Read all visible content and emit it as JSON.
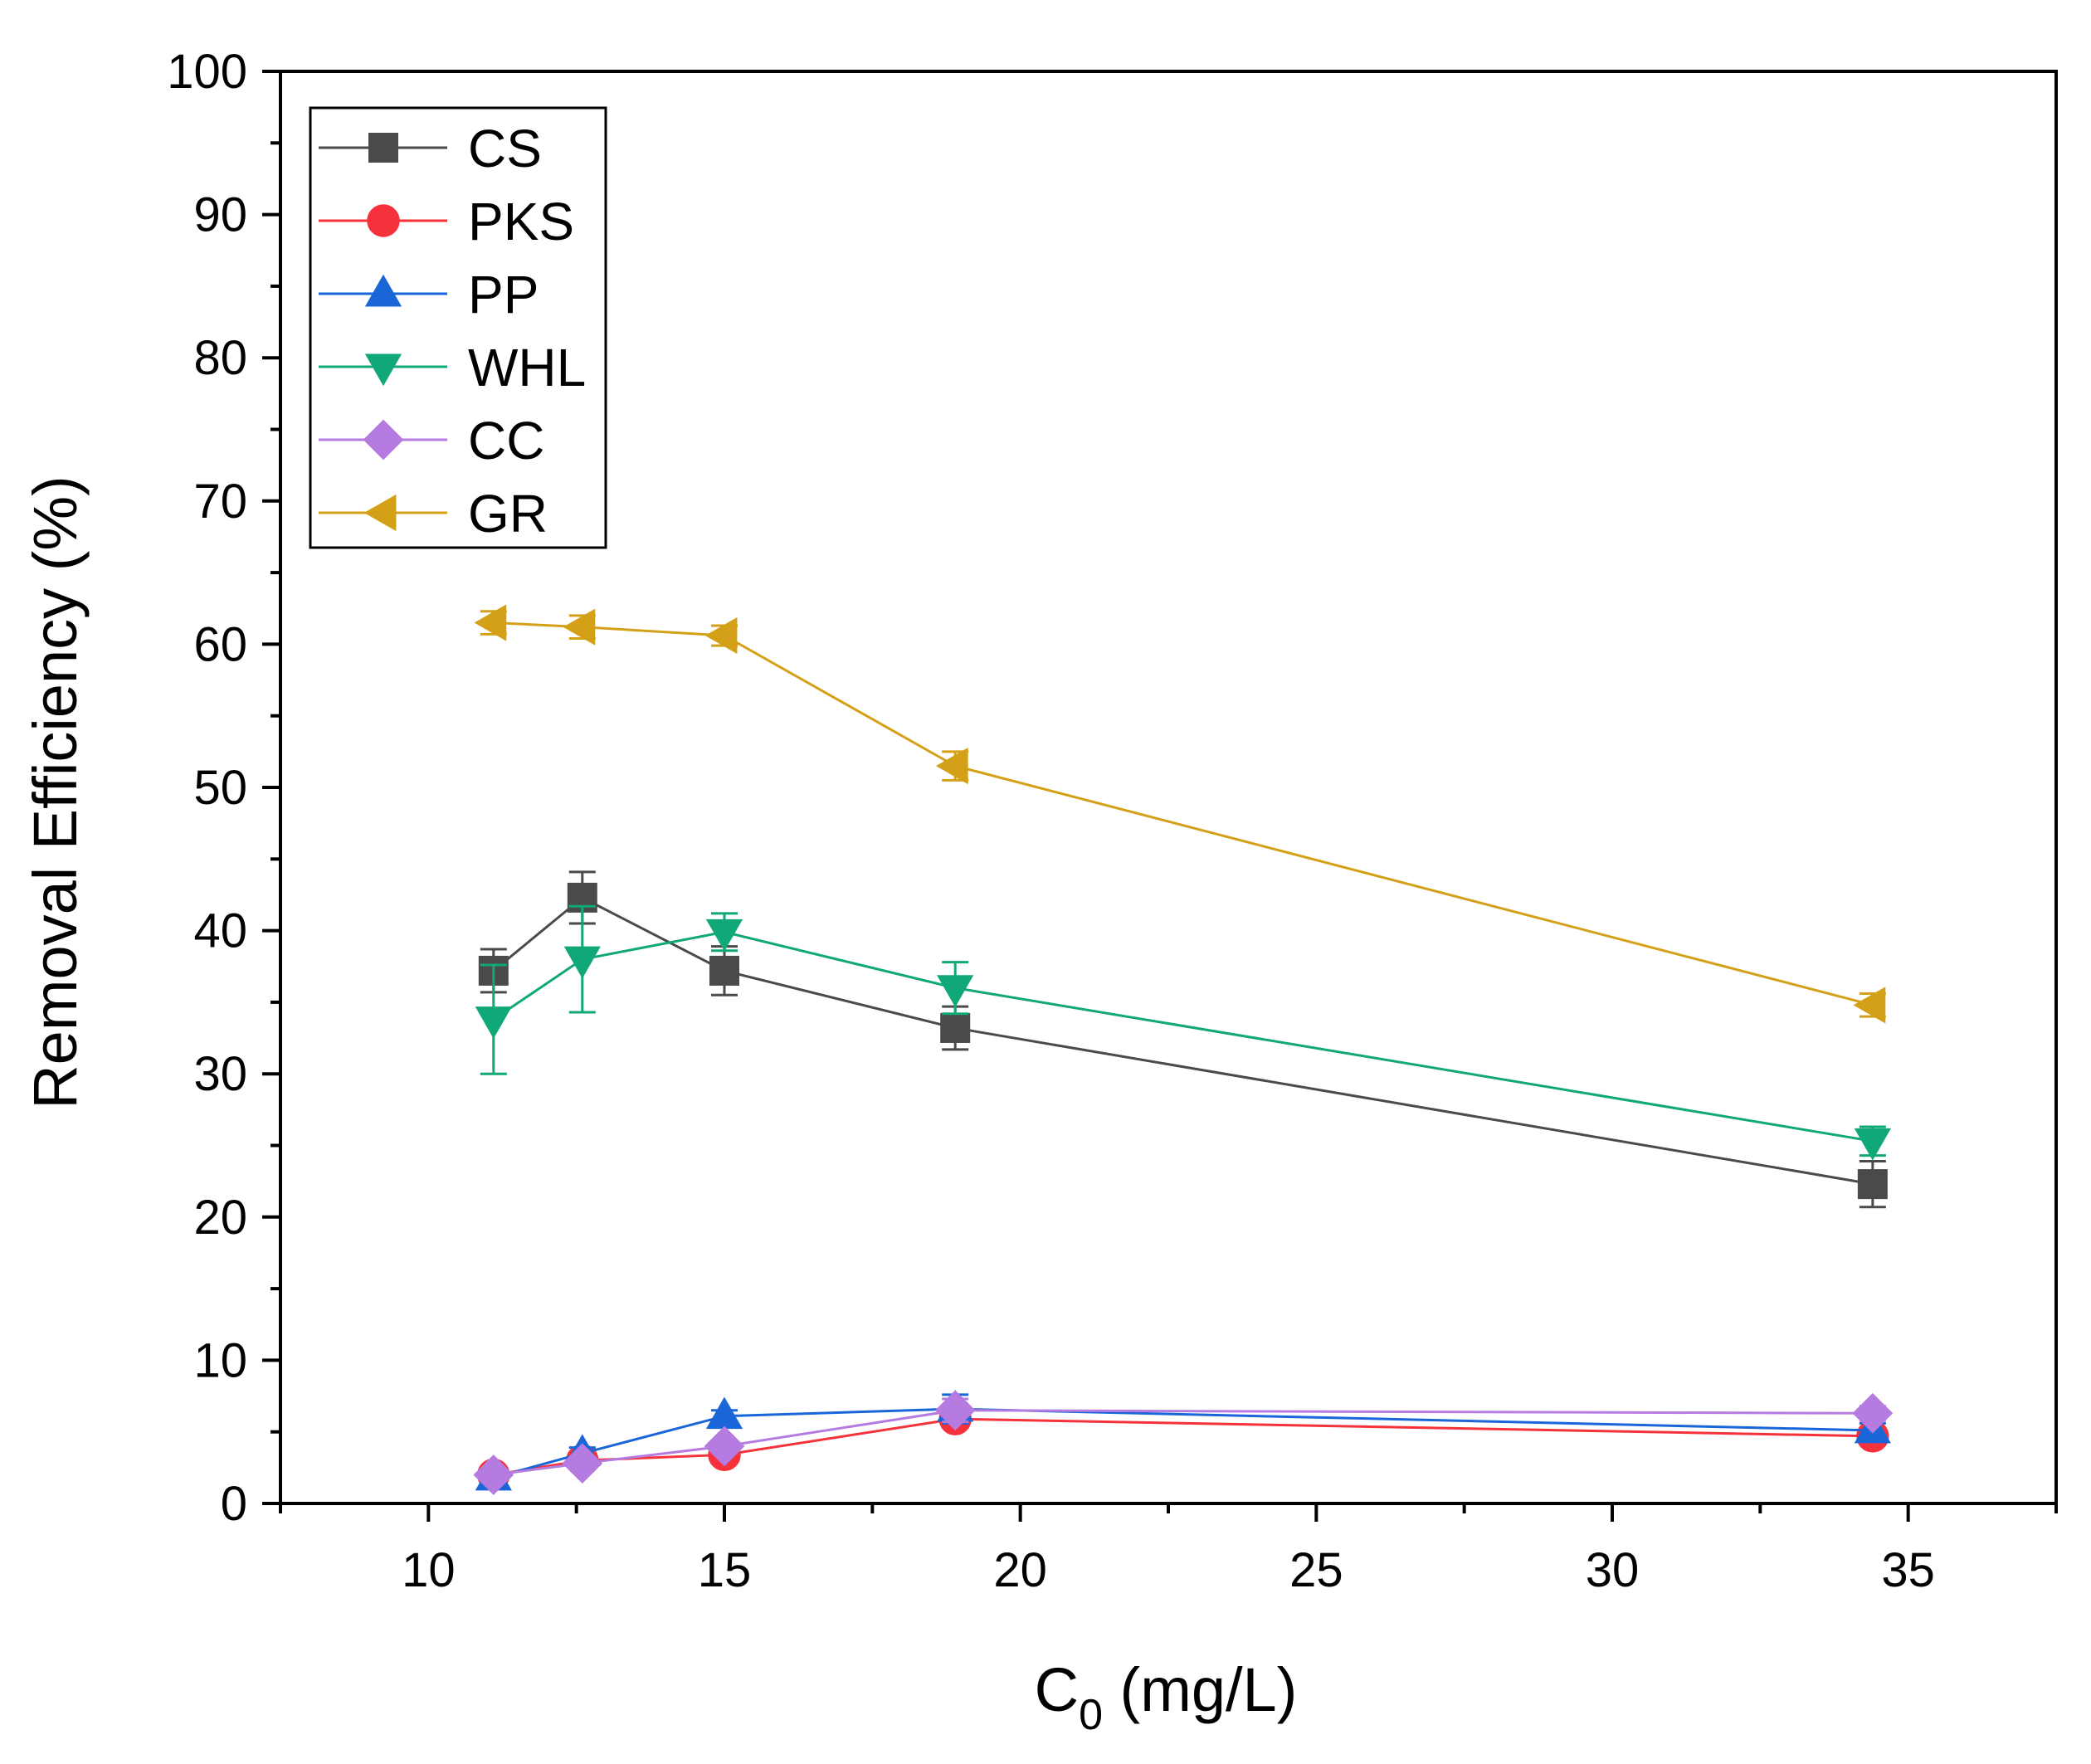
{
  "chart_data": {
    "type": "line",
    "title": "",
    "xlabel": "C0 (mg/L)",
    "xlabel_main": "C",
    "xlabel_sub": "0",
    "xlabel_rest": " (mg/L)",
    "ylabel": "Removal Efficiency (%)",
    "xlim": [
      7.5,
      37.5
    ],
    "ylim": [
      0,
      100
    ],
    "x_ticks": [
      10,
      15,
      20,
      25,
      30,
      35
    ],
    "x_tick_labels": [
      "10",
      "15",
      "20",
      "25",
      "30",
      "35"
    ],
    "y_ticks": [
      0,
      10,
      20,
      30,
      40,
      50,
      60,
      70,
      80,
      90,
      100
    ],
    "y_tick_labels": [
      "0",
      "10",
      "20",
      "30",
      "40",
      "50",
      "60",
      "70",
      "80",
      "90",
      "100"
    ],
    "grid": false,
    "legend_position": "top-left",
    "x": [
      11.1,
      12.6,
      15.0,
      18.9,
      34.4
    ],
    "series": [
      {
        "name": "CS",
        "marker": "square",
        "color": "#4a4a4a",
        "values": [
          37.2,
          42.3,
          37.2,
          33.2,
          22.3
        ],
        "errors": [
          1.5,
          1.8,
          1.7,
          1.5,
          1.6
        ]
      },
      {
        "name": "PKS",
        "marker": "circle",
        "color": "#f5323c",
        "values": [
          2.0,
          3.0,
          3.4,
          5.9,
          4.7
        ],
        "errors": [
          0.4,
          0.4,
          0.4,
          0.6,
          0.5
        ]
      },
      {
        "name": "PP",
        "marker": "triangle-up",
        "color": "#1a66d9",
        "values": [
          1.8,
          3.5,
          6.1,
          6.6,
          5.1
        ],
        "errors": [
          0.4,
          0.4,
          0.4,
          1.0,
          0.5
        ]
      },
      {
        "name": "WHL",
        "marker": "triangle-down",
        "color": "#10a878",
        "values": [
          33.8,
          38.0,
          39.9,
          36.0,
          25.3
        ],
        "errors": [
          3.8,
          3.7,
          1.3,
          1.8,
          1.0
        ]
      },
      {
        "name": "CC",
        "marker": "diamond",
        "color": "#b57be0",
        "values": [
          2.0,
          2.8,
          4.0,
          6.5,
          6.3
        ],
        "errors": [
          0.4,
          0.4,
          0.4,
          0.8,
          0.5
        ]
      },
      {
        "name": "GR",
        "marker": "triangle-left",
        "color": "#d4a017",
        "values": [
          61.5,
          61.2,
          60.6,
          51.5,
          34.8
        ],
        "errors": [
          0.8,
          0.8,
          0.7,
          1.0,
          0.8
        ]
      }
    ]
  }
}
